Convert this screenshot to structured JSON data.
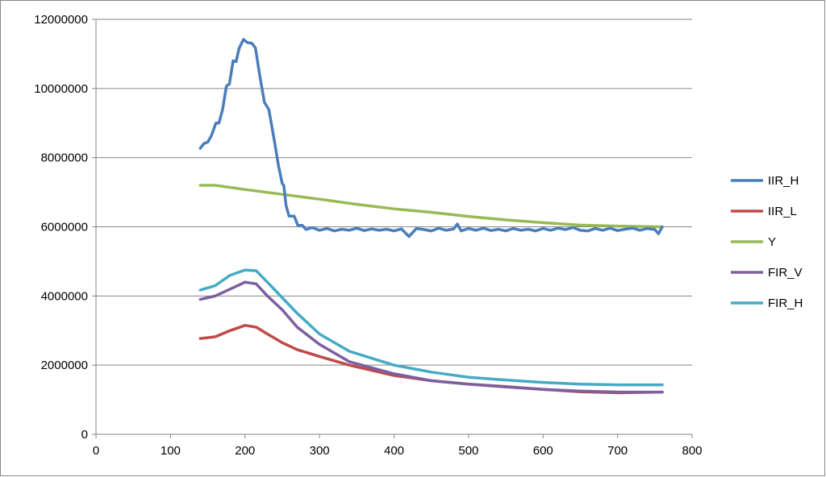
{
  "chart_data": {
    "type": "line",
    "title": "",
    "xlabel": "",
    "ylabel": "",
    "xlim": [
      0,
      800
    ],
    "ylim": [
      0,
      12000000
    ],
    "xticks": [
      "0",
      "100",
      "200",
      "300",
      "400",
      "500",
      "600",
      "700",
      "800"
    ],
    "yticks": [
      "0",
      "2000000",
      "4000000",
      "6000000",
      "8000000",
      "10000000",
      "12000000"
    ],
    "grid": "horizontal",
    "legend_position": "right",
    "series": [
      {
        "name": "IIR_H",
        "color": "#4a7ebb",
        "points": [
          [
            140,
            8270000
          ],
          [
            145,
            8410000
          ],
          [
            150,
            8450000
          ],
          [
            155,
            8640000
          ],
          [
            161,
            9000000
          ],
          [
            165,
            9000000
          ],
          [
            170,
            9400000
          ],
          [
            175,
            10070000
          ],
          [
            179,
            10130000
          ],
          [
            184,
            10800000
          ],
          [
            188,
            10780000
          ],
          [
            192,
            11160000
          ],
          [
            198,
            11420000
          ],
          [
            203,
            11330000
          ],
          [
            209,
            11310000
          ],
          [
            214,
            11170000
          ],
          [
            220,
            10350000
          ],
          [
            226,
            9600000
          ],
          [
            232,
            9390000
          ],
          [
            240,
            8410000
          ],
          [
            245,
            7760000
          ],
          [
            247,
            7550000
          ],
          [
            250,
            7250000
          ],
          [
            252,
            7200000
          ],
          [
            255,
            6620000
          ],
          [
            259,
            6310000
          ],
          [
            266,
            6310000
          ],
          [
            271,
            6040000
          ],
          [
            277,
            6040000
          ],
          [
            282,
            5920000
          ],
          [
            290,
            5980000
          ],
          [
            300,
            5900000
          ],
          [
            310,
            5950000
          ],
          [
            320,
            5880000
          ],
          [
            330,
            5930000
          ],
          [
            340,
            5900000
          ],
          [
            350,
            5960000
          ],
          [
            360,
            5890000
          ],
          [
            370,
            5940000
          ],
          [
            380,
            5900000
          ],
          [
            390,
            5930000
          ],
          [
            400,
            5880000
          ],
          [
            410,
            5940000
          ],
          [
            420,
            5720000
          ],
          [
            430,
            5950000
          ],
          [
            440,
            5920000
          ],
          [
            450,
            5880000
          ],
          [
            460,
            5960000
          ],
          [
            470,
            5900000
          ],
          [
            480,
            5940000
          ],
          [
            485,
            6080000
          ],
          [
            490,
            5880000
          ],
          [
            500,
            5950000
          ],
          [
            510,
            5900000
          ],
          [
            520,
            5960000
          ],
          [
            530,
            5890000
          ],
          [
            540,
            5930000
          ],
          [
            550,
            5880000
          ],
          [
            560,
            5950000
          ],
          [
            570,
            5900000
          ],
          [
            580,
            5930000
          ],
          [
            590,
            5880000
          ],
          [
            600,
            5950000
          ],
          [
            610,
            5900000
          ],
          [
            620,
            5960000
          ],
          [
            630,
            5920000
          ],
          [
            640,
            5980000
          ],
          [
            650,
            5900000
          ],
          [
            660,
            5880000
          ],
          [
            670,
            5950000
          ],
          [
            680,
            5900000
          ],
          [
            690,
            5960000
          ],
          [
            700,
            5890000
          ],
          [
            710,
            5930000
          ],
          [
            720,
            5960000
          ],
          [
            730,
            5900000
          ],
          [
            740,
            5950000
          ],
          [
            750,
            5920000
          ],
          [
            755,
            5800000
          ],
          [
            760,
            6000000
          ]
        ]
      },
      {
        "name": "IIR_L",
        "color": "#be4b48",
        "points": [
          [
            140,
            2770000
          ],
          [
            160,
            2820000
          ],
          [
            180,
            3000000
          ],
          [
            200,
            3150000
          ],
          [
            215,
            3100000
          ],
          [
            230,
            2900000
          ],
          [
            250,
            2650000
          ],
          [
            270,
            2450000
          ],
          [
            300,
            2250000
          ],
          [
            340,
            2000000
          ],
          [
            400,
            1700000
          ],
          [
            450,
            1550000
          ],
          [
            500,
            1450000
          ],
          [
            550,
            1380000
          ],
          [
            600,
            1300000
          ],
          [
            650,
            1230000
          ],
          [
            700,
            1200000
          ],
          [
            760,
            1220000
          ]
        ]
      },
      {
        "name": "Y",
        "color": "#98b954",
        "points": [
          [
            140,
            7200000
          ],
          [
            160,
            7200000
          ],
          [
            200,
            7080000
          ],
          [
            250,
            6940000
          ],
          [
            300,
            6800000
          ],
          [
            350,
            6650000
          ],
          [
            400,
            6520000
          ],
          [
            450,
            6420000
          ],
          [
            500,
            6300000
          ],
          [
            550,
            6200000
          ],
          [
            600,
            6120000
          ],
          [
            650,
            6050000
          ],
          [
            700,
            6020000
          ],
          [
            760,
            6000000
          ]
        ]
      },
      {
        "name": "FIR_V",
        "color": "#7d5fa0",
        "points": [
          [
            140,
            3900000
          ],
          [
            160,
            4000000
          ],
          [
            180,
            4200000
          ],
          [
            200,
            4400000
          ],
          [
            215,
            4350000
          ],
          [
            230,
            4000000
          ],
          [
            250,
            3600000
          ],
          [
            270,
            3100000
          ],
          [
            300,
            2600000
          ],
          [
            340,
            2100000
          ],
          [
            400,
            1750000
          ],
          [
            450,
            1550000
          ],
          [
            500,
            1450000
          ],
          [
            550,
            1370000
          ],
          [
            600,
            1300000
          ],
          [
            650,
            1250000
          ],
          [
            700,
            1220000
          ],
          [
            760,
            1220000
          ]
        ]
      },
      {
        "name": "FIR_H",
        "color": "#46aac5",
        "points": [
          [
            140,
            4170000
          ],
          [
            160,
            4300000
          ],
          [
            180,
            4600000
          ],
          [
            200,
            4750000
          ],
          [
            215,
            4730000
          ],
          [
            230,
            4400000
          ],
          [
            250,
            3950000
          ],
          [
            270,
            3500000
          ],
          [
            300,
            2900000
          ],
          [
            340,
            2400000
          ],
          [
            400,
            2000000
          ],
          [
            450,
            1800000
          ],
          [
            500,
            1650000
          ],
          [
            550,
            1570000
          ],
          [
            600,
            1500000
          ],
          [
            650,
            1450000
          ],
          [
            700,
            1430000
          ],
          [
            760,
            1430000
          ]
        ]
      }
    ]
  }
}
